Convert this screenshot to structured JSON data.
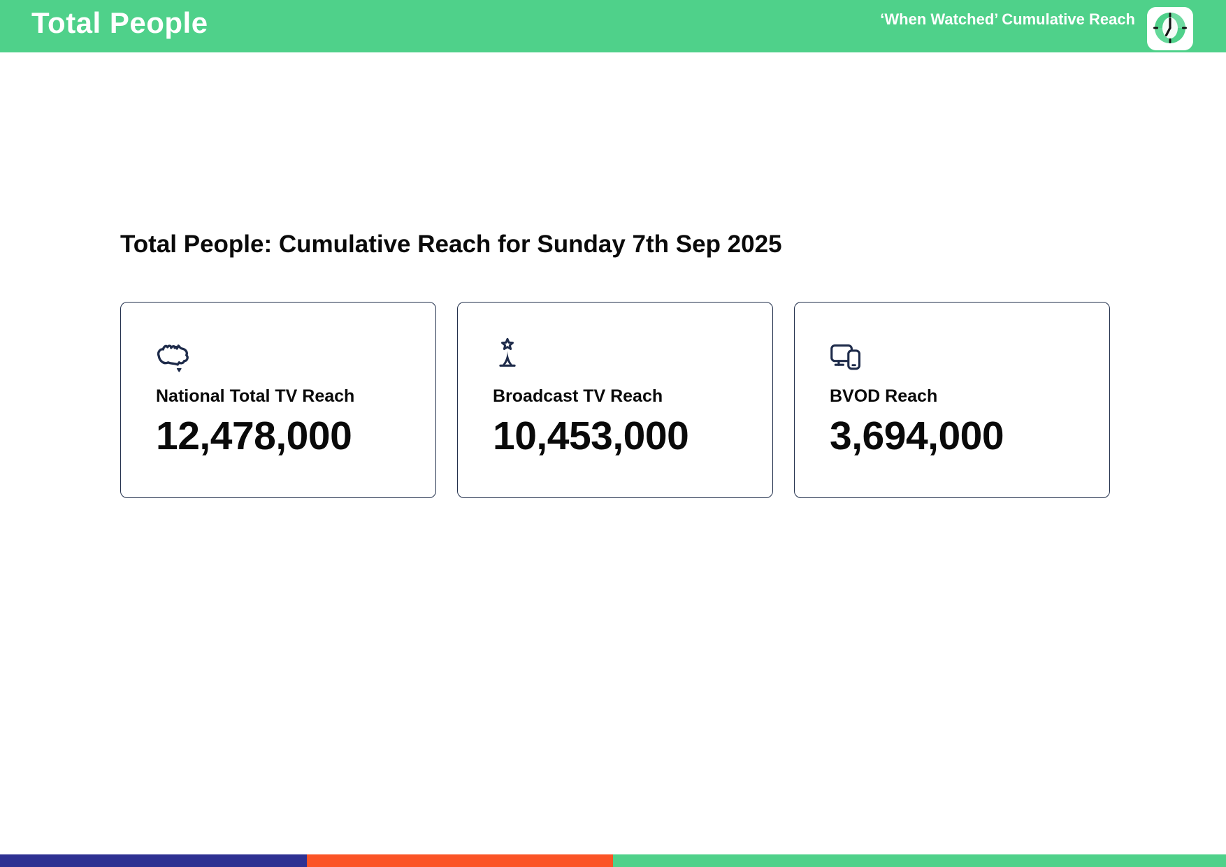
{
  "header": {
    "title": "Total People",
    "badge_label": "‘When Watched’ Cumulative Reach"
  },
  "main": {
    "heading": "Total People: Cumulative Reach for Sunday 7th Sep 2025",
    "cards": [
      {
        "icon": "australia-map",
        "label": "National Total TV Reach",
        "value": "12,478,000"
      },
      {
        "icon": "broadcast-tower",
        "label": "Broadcast TV Reach",
        "value": "10,453,000"
      },
      {
        "icon": "tv-and-mobile-devices",
        "label": "BVOD Reach",
        "value": "3,694,000"
      }
    ]
  },
  "footer": {
    "segments": [
      {
        "name": "navy",
        "color": "#2E3192",
        "width_pct": 25
      },
      {
        "name": "orange",
        "color": "#FB5426",
        "width_pct": 25
      },
      {
        "name": "green",
        "color": "#4FD18A",
        "width_pct": 50
      }
    ]
  },
  "colors": {
    "header_green": "#4FD18A",
    "icon_navy": "#1E2B4A",
    "card_border": "#22304C",
    "clock_face_green": "#4FD18A",
    "clock_face_light": "#8BE4B4",
    "clock_hands": "#141414"
  }
}
